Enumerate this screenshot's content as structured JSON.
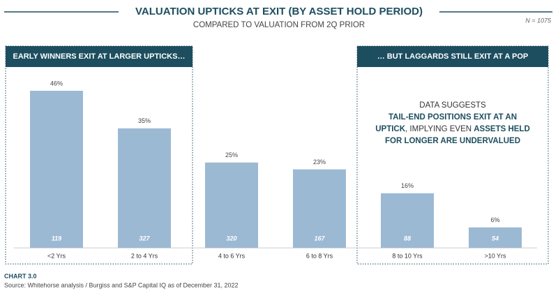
{
  "chart_data": {
    "type": "bar",
    "title": "VALUATION UPTICKS AT EXIT (BY ASSET HOLD PERIOD)",
    "subtitle": "COMPARED TO VALUATION FROM 2Q PRIOR",
    "note": "N = 1075",
    "categories": [
      "<2 Yrs",
      "2 to 4 Yrs",
      "4 to 6 Yrs",
      "6 to 8 Yrs",
      "8 to 10 Yrs",
      ">10 Yrs"
    ],
    "values": [
      46,
      35,
      25,
      23,
      16,
      6
    ],
    "value_labels": [
      "46%",
      "35%",
      "25%",
      "23%",
      "16%",
      "6%"
    ],
    "counts": [
      119,
      327,
      320,
      167,
      88,
      54
    ],
    "color": "#9cb9d4",
    "panels": [
      "EARLY WINNERS EXIT AT LARGER UPTICKS…",
      "… BUT LAGGARDS STILL EXIT AT A POP"
    ],
    "annotation": [
      [
        {
          "text": "DATA SUGGESTS",
          "bold": false
        }
      ],
      [
        {
          "text": "TAIL-END POSITIONS EXIT AT AN",
          "bold": true
        }
      ],
      [
        {
          "text": "UPTICK",
          "bold": true
        },
        {
          "text": ", IMPLYING EVEN ",
          "bold": false
        },
        {
          "text": "ASSETS HELD",
          "bold": true
        }
      ],
      [
        {
          "text": "FOR LONGER ARE UNDERVALUED",
          "bold": true
        }
      ]
    ],
    "chart_label": "CHART 3.0",
    "source": "Source: Whitehorse analysis / Burgiss and S&P Capital IQ as of December 31, 2022"
  }
}
